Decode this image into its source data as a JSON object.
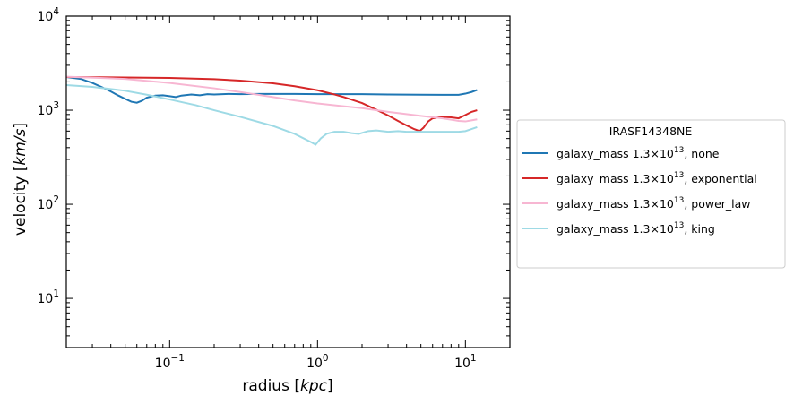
{
  "chart_data": {
    "type": "line",
    "xlabel": "radius [kpc]",
    "ylabel": "velocity [km/s]",
    "x_scale": "log",
    "y_scale": "log",
    "xlim": [
      0.02,
      20
    ],
    "ylim": [
      3,
      10000
    ],
    "x_ticks": [
      {
        "value": 0.1,
        "base": "10",
        "exp": "−1"
      },
      {
        "value": 1,
        "base": "10",
        "exp": "0"
      },
      {
        "value": 10,
        "base": "10",
        "exp": "1"
      }
    ],
    "y_ticks": [
      {
        "value": 10,
        "base": "10",
        "exp": "1"
      },
      {
        "value": 100,
        "base": "10",
        "exp": "2"
      },
      {
        "value": 1000,
        "base": "10",
        "exp": "3"
      },
      {
        "value": 10000,
        "base": "10",
        "exp": "4"
      }
    ],
    "grid": false,
    "legend": {
      "title": "IRASF14348NE",
      "placement": "outside-right",
      "entries": [
        {
          "prefix": "galaxy_mass 1.3×10",
          "exp": "13",
          "suffix": ", none"
        },
        {
          "prefix": "galaxy_mass 1.3×10",
          "exp": "13",
          "suffix": ", exponential"
        },
        {
          "prefix": "galaxy_mass 1.3×10",
          "exp": "13",
          "suffix": ", power_law"
        },
        {
          "prefix": "galaxy_mass 1.3×10",
          "exp": "13",
          "suffix": ", king"
        }
      ]
    },
    "series": [
      {
        "color": "#1f77b4",
        "points": [
          [
            0.02,
            2250
          ],
          [
            0.025,
            2150
          ],
          [
            0.03,
            1950
          ],
          [
            0.035,
            1750
          ],
          [
            0.04,
            1580
          ],
          [
            0.045,
            1430
          ],
          [
            0.05,
            1320
          ],
          [
            0.055,
            1230
          ],
          [
            0.06,
            1200
          ],
          [
            0.065,
            1260
          ],
          [
            0.07,
            1360
          ],
          [
            0.08,
            1430
          ],
          [
            0.09,
            1440
          ],
          [
            0.1,
            1410
          ],
          [
            0.11,
            1380
          ],
          [
            0.12,
            1430
          ],
          [
            0.14,
            1470
          ],
          [
            0.16,
            1440
          ],
          [
            0.18,
            1480
          ],
          [
            0.2,
            1470
          ],
          [
            0.25,
            1490
          ],
          [
            0.3,
            1480
          ],
          [
            0.4,
            1490
          ],
          [
            0.5,
            1490
          ],
          [
            0.7,
            1490
          ],
          [
            1,
            1480
          ],
          [
            2,
            1480
          ],
          [
            3,
            1470
          ],
          [
            5,
            1460
          ],
          [
            7,
            1455
          ],
          [
            9,
            1455
          ],
          [
            10,
            1500
          ],
          [
            11,
            1560
          ],
          [
            12,
            1640
          ]
        ]
      },
      {
        "color": "#d62728",
        "points": [
          [
            0.02,
            2250
          ],
          [
            0.05,
            2230
          ],
          [
            0.1,
            2200
          ],
          [
            0.2,
            2140
          ],
          [
            0.3,
            2060
          ],
          [
            0.5,
            1930
          ],
          [
            0.7,
            1800
          ],
          [
            1,
            1630
          ],
          [
            1.3,
            1470
          ],
          [
            1.5,
            1380
          ],
          [
            2,
            1190
          ],
          [
            2.5,
            1010
          ],
          [
            3,
            880
          ],
          [
            3.5,
            770
          ],
          [
            4,
            690
          ],
          [
            4.5,
            630
          ],
          [
            4.9,
            600
          ],
          [
            5.2,
            650
          ],
          [
            5.6,
            760
          ],
          [
            6,
            820
          ],
          [
            7,
            850
          ],
          [
            8,
            840
          ],
          [
            9,
            820
          ],
          [
            10,
            890
          ],
          [
            11,
            960
          ],
          [
            12,
            1000
          ]
        ]
      },
      {
        "color": "#f7b6d2",
        "points": [
          [
            0.02,
            2270
          ],
          [
            0.05,
            2150
          ],
          [
            0.1,
            1950
          ],
          [
            0.2,
            1710
          ],
          [
            0.3,
            1560
          ],
          [
            0.5,
            1380
          ],
          [
            0.7,
            1270
          ],
          [
            1,
            1180
          ],
          [
            2,
            1050
          ],
          [
            3,
            960
          ],
          [
            5,
            870
          ],
          [
            7,
            820
          ],
          [
            9,
            770
          ],
          [
            10,
            760
          ],
          [
            11,
            780
          ],
          [
            12,
            800
          ]
        ]
      },
      {
        "color": "#9edae5",
        "points": [
          [
            0.02,
            1850
          ],
          [
            0.03,
            1770
          ],
          [
            0.05,
            1610
          ],
          [
            0.07,
            1460
          ],
          [
            0.1,
            1300
          ],
          [
            0.15,
            1130
          ],
          [
            0.2,
            1000
          ],
          [
            0.3,
            850
          ],
          [
            0.5,
            680
          ],
          [
            0.7,
            560
          ],
          [
            0.9,
            460
          ],
          [
            0.97,
            430
          ],
          [
            1.05,
            500
          ],
          [
            1.15,
            560
          ],
          [
            1.3,
            590
          ],
          [
            1.5,
            590
          ],
          [
            1.7,
            570
          ],
          [
            1.9,
            560
          ],
          [
            2.2,
            600
          ],
          [
            2.5,
            610
          ],
          [
            3,
            590
          ],
          [
            3.5,
            600
          ],
          [
            4,
            590
          ],
          [
            5,
            590
          ],
          [
            7,
            590
          ],
          [
            9,
            590
          ],
          [
            10,
            600
          ],
          [
            11,
            630
          ],
          [
            12,
            660
          ]
        ]
      }
    ]
  }
}
